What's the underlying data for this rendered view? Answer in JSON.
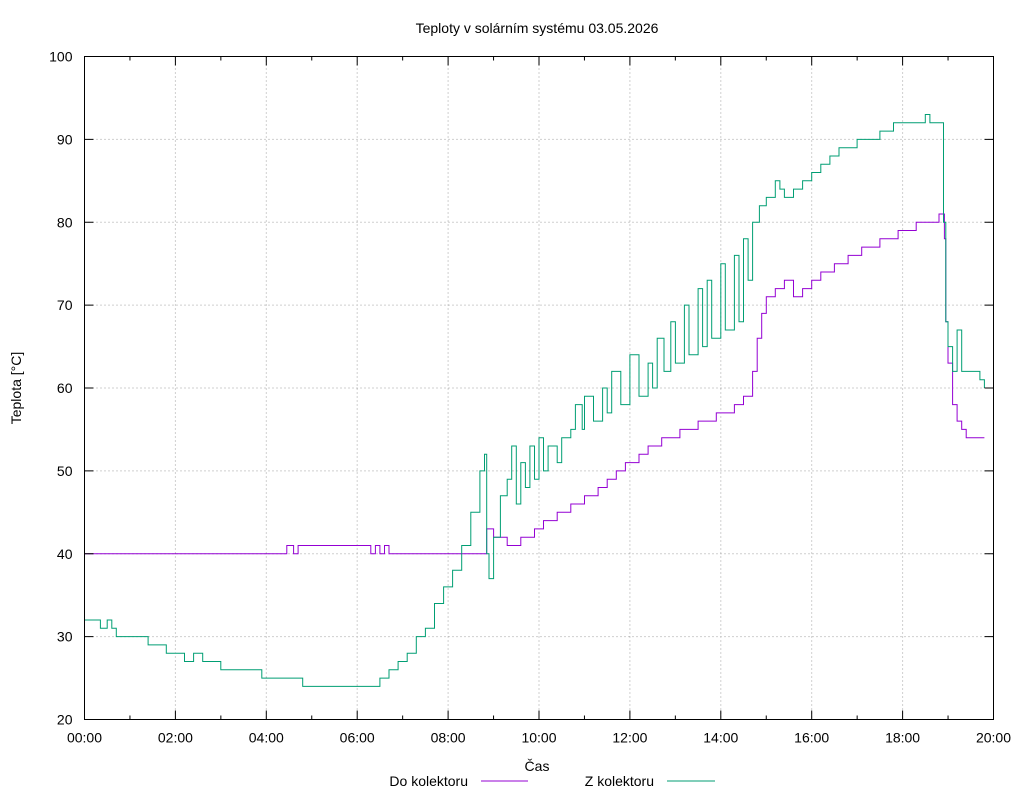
{
  "chart_data": {
    "type": "line",
    "title": "Teploty v solárním systému 03.05.2026",
    "xlabel": "Čas",
    "ylabel": "Teplota [°C]",
    "xlim": [
      0,
      20
    ],
    "ylim": [
      20,
      100
    ],
    "x_ticks": [
      "00:00",
      "02:00",
      "04:00",
      "06:00",
      "08:00",
      "10:00",
      "12:00",
      "14:00",
      "16:00",
      "18:00",
      "20:00"
    ],
    "y_ticks": [
      "20",
      "30",
      "40",
      "50",
      "60",
      "70",
      "80",
      "90",
      "100"
    ],
    "grid": true,
    "legend_position": "bottom-center",
    "series": [
      {
        "name": "Do kolektoru",
        "color": "#9400d3",
        "points": [
          [
            0,
            40
          ],
          [
            4.4,
            40
          ],
          [
            4.45,
            41
          ],
          [
            4.6,
            40
          ],
          [
            4.7,
            41
          ],
          [
            6.2,
            41
          ],
          [
            6.3,
            40
          ],
          [
            6.4,
            41
          ],
          [
            6.5,
            40
          ],
          [
            6.6,
            41
          ],
          [
            6.7,
            40
          ],
          [
            8.8,
            40
          ],
          [
            8.85,
            43
          ],
          [
            9.0,
            42
          ],
          [
            9.3,
            41
          ],
          [
            9.6,
            42
          ],
          [
            9.9,
            43
          ],
          [
            10.1,
            44
          ],
          [
            10.4,
            45
          ],
          [
            10.7,
            46
          ],
          [
            11.0,
            47
          ],
          [
            11.3,
            48
          ],
          [
            11.5,
            49
          ],
          [
            11.7,
            50
          ],
          [
            11.9,
            51
          ],
          [
            12.2,
            52
          ],
          [
            12.4,
            53
          ],
          [
            12.7,
            54
          ],
          [
            13.1,
            55
          ],
          [
            13.5,
            56
          ],
          [
            13.9,
            57
          ],
          [
            14.3,
            58
          ],
          [
            14.5,
            59
          ],
          [
            14.7,
            62
          ],
          [
            14.8,
            66
          ],
          [
            14.9,
            69
          ],
          [
            15.0,
            71
          ],
          [
            15.2,
            72
          ],
          [
            15.4,
            73
          ],
          [
            15.6,
            71
          ],
          [
            15.8,
            72
          ],
          [
            16.0,
            73
          ],
          [
            16.2,
            74
          ],
          [
            16.5,
            75
          ],
          [
            16.8,
            76
          ],
          [
            17.1,
            77
          ],
          [
            17.5,
            78
          ],
          [
            17.9,
            79
          ],
          [
            18.3,
            80
          ],
          [
            18.8,
            81
          ],
          [
            18.9,
            81
          ],
          [
            18.92,
            78
          ],
          [
            18.95,
            68
          ],
          [
            19.0,
            63
          ],
          [
            19.1,
            58
          ],
          [
            19.2,
            56
          ],
          [
            19.3,
            55
          ],
          [
            19.4,
            54
          ],
          [
            19.5,
            54
          ],
          [
            19.8,
            54
          ]
        ]
      },
      {
        "name": "Z kolektoru",
        "color": "#009e73",
        "points": [
          [
            0,
            32
          ],
          [
            0.3,
            32
          ],
          [
            0.35,
            31
          ],
          [
            0.5,
            32
          ],
          [
            0.6,
            31
          ],
          [
            0.7,
            30
          ],
          [
            1.3,
            30
          ],
          [
            1.4,
            29
          ],
          [
            1.7,
            29
          ],
          [
            1.8,
            28
          ],
          [
            2.1,
            28
          ],
          [
            2.2,
            27
          ],
          [
            2.4,
            28
          ],
          [
            2.6,
            27
          ],
          [
            2.9,
            27
          ],
          [
            3.0,
            26
          ],
          [
            3.8,
            26
          ],
          [
            3.9,
            25
          ],
          [
            4.7,
            25
          ],
          [
            4.8,
            24
          ],
          [
            6.4,
            24
          ],
          [
            6.5,
            25
          ],
          [
            6.7,
            26
          ],
          [
            6.9,
            27
          ],
          [
            7.1,
            28
          ],
          [
            7.3,
            30
          ],
          [
            7.5,
            31
          ],
          [
            7.7,
            34
          ],
          [
            7.9,
            36
          ],
          [
            8.1,
            38
          ],
          [
            8.3,
            41
          ],
          [
            8.5,
            45
          ],
          [
            8.7,
            50
          ],
          [
            8.8,
            52
          ],
          [
            8.85,
            40
          ],
          [
            8.9,
            37
          ],
          [
            9.0,
            42
          ],
          [
            9.15,
            47
          ],
          [
            9.3,
            49
          ],
          [
            9.4,
            53
          ],
          [
            9.5,
            46
          ],
          [
            9.6,
            51
          ],
          [
            9.7,
            48
          ],
          [
            9.8,
            53
          ],
          [
            9.9,
            49
          ],
          [
            10.0,
            54
          ],
          [
            10.1,
            50
          ],
          [
            10.2,
            53
          ],
          [
            10.4,
            51
          ],
          [
            10.5,
            54
          ],
          [
            10.7,
            55
          ],
          [
            10.8,
            58
          ],
          [
            10.95,
            55
          ],
          [
            11.0,
            59
          ],
          [
            11.2,
            56
          ],
          [
            11.4,
            60
          ],
          [
            11.5,
            57
          ],
          [
            11.6,
            62
          ],
          [
            11.8,
            58
          ],
          [
            12.0,
            64
          ],
          [
            12.2,
            59
          ],
          [
            12.4,
            63
          ],
          [
            12.5,
            60
          ],
          [
            12.6,
            66
          ],
          [
            12.75,
            62
          ],
          [
            12.9,
            68
          ],
          [
            13.0,
            63
          ],
          [
            13.2,
            70
          ],
          [
            13.3,
            64
          ],
          [
            13.5,
            72
          ],
          [
            13.6,
            65
          ],
          [
            13.7,
            73
          ],
          [
            13.8,
            66
          ],
          [
            14.0,
            75
          ],
          [
            14.1,
            67
          ],
          [
            14.3,
            76
          ],
          [
            14.4,
            68
          ],
          [
            14.5,
            78
          ],
          [
            14.6,
            73
          ],
          [
            14.7,
            80
          ],
          [
            14.85,
            82
          ],
          [
            15.0,
            83
          ],
          [
            15.2,
            85
          ],
          [
            15.3,
            84
          ],
          [
            15.4,
            83
          ],
          [
            15.6,
            84
          ],
          [
            15.8,
            85
          ],
          [
            16.0,
            86
          ],
          [
            16.2,
            87
          ],
          [
            16.4,
            88
          ],
          [
            16.6,
            89
          ],
          [
            16.8,
            89
          ],
          [
            17.0,
            90
          ],
          [
            17.3,
            90
          ],
          [
            17.5,
            91
          ],
          [
            17.7,
            91
          ],
          [
            17.8,
            92
          ],
          [
            18.4,
            92
          ],
          [
            18.5,
            93
          ],
          [
            18.6,
            92
          ],
          [
            18.85,
            92
          ],
          [
            18.9,
            80
          ],
          [
            18.95,
            68
          ],
          [
            19.0,
            65
          ],
          [
            19.1,
            62
          ],
          [
            19.2,
            67
          ],
          [
            19.3,
            62
          ],
          [
            19.6,
            62
          ],
          [
            19.7,
            61
          ],
          [
            19.8,
            60
          ]
        ]
      }
    ]
  }
}
